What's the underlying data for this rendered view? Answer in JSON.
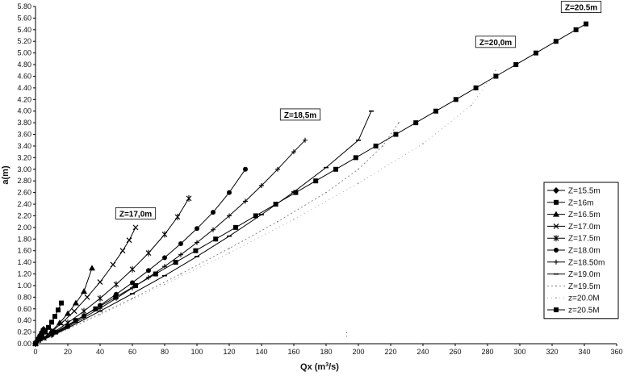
{
  "chart_data": {
    "type": "line",
    "xlabel_main": "Qx (m",
    "xlabel_sup": "3",
    "xlabel_tail": "/s)",
    "ylabel": "a(m)",
    "xlim": [
      0,
      360
    ],
    "ylim": [
      0,
      5.8
    ],
    "xticks": [
      "0",
      "20",
      "40",
      "60",
      "80",
      "100",
      "120",
      "140",
      "160",
      "180",
      "200",
      "220",
      "240",
      "260",
      "280",
      "300",
      "320",
      "340",
      "360"
    ],
    "yticks": [
      "0.00",
      "0.20",
      "0.40",
      "0.60",
      "0.80",
      "1.00",
      "1.20",
      "1.40",
      "1.60",
      "1.80",
      "2.00",
      "2.20",
      "2.40",
      "2.60",
      "2.80",
      "3.00",
      "3.20",
      "3.40",
      "3.60",
      "3.80",
      "4.00",
      "4.20",
      "4.40",
      "4.60",
      "4.80",
      "5.00",
      "5.20",
      "5.40",
      "5.60",
      "5.80"
    ],
    "grid": false,
    "legend_position": "right",
    "series": [
      {
        "name": "Z=15.5m",
        "marker": "diamond",
        "color": "#000000",
        "dash": "",
        "x": [
          0,
          1,
          2,
          3,
          4,
          5
        ],
        "y": [
          0,
          0.05,
          0.1,
          0.15,
          0.2,
          0.25
        ]
      },
      {
        "name": "Z=16m",
        "marker": "square",
        "color": "#000000",
        "dash": "",
        "x": [
          0,
          2,
          4,
          6,
          8,
          10,
          12,
          14,
          16
        ],
        "y": [
          0,
          0.06,
          0.12,
          0.2,
          0.28,
          0.37,
          0.47,
          0.58,
          0.7
        ]
      },
      {
        "name": "Z=16.5m",
        "marker": "triangle",
        "color": "#000000",
        "dash": "",
        "x": [
          0,
          5,
          10,
          15,
          20,
          25,
          30,
          35
        ],
        "y": [
          0,
          0.1,
          0.22,
          0.36,
          0.52,
          0.7,
          0.9,
          1.3
        ]
      },
      {
        "name": "Z=17.0m",
        "marker": "x",
        "color": "#000000",
        "dash": "",
        "x": [
          0,
          8,
          16,
          24,
          32,
          40,
          48,
          54,
          58,
          62
        ],
        "y": [
          0,
          0.16,
          0.35,
          0.56,
          0.8,
          1.06,
          1.36,
          1.6,
          1.78,
          2.0
        ]
      },
      {
        "name": "Z=17.5m",
        "marker": "star",
        "color": "#000000",
        "dash": "",
        "x": [
          0,
          10,
          20,
          30,
          40,
          50,
          60,
          70,
          80,
          88,
          95
        ],
        "y": [
          0,
          0.17,
          0.36,
          0.56,
          0.78,
          1.02,
          1.28,
          1.56,
          1.88,
          2.18,
          2.5
        ]
      },
      {
        "name": "Z=18.0m",
        "marker": "circle",
        "color": "#000000",
        "dash": "",
        "x": [
          0,
          10,
          20,
          30,
          40,
          50,
          60,
          70,
          80,
          90,
          100,
          110,
          120,
          130
        ],
        "y": [
          0,
          0.15,
          0.31,
          0.48,
          0.66,
          0.85,
          1.05,
          1.26,
          1.48,
          1.72,
          1.98,
          2.26,
          2.6,
          3.0
        ]
      },
      {
        "name": "Z=18.50m",
        "marker": "plus",
        "color": "#000000",
        "dash": "",
        "x": [
          0,
          10,
          20,
          30,
          40,
          50,
          60,
          70,
          80,
          90,
          100,
          110,
          120,
          130,
          140,
          150,
          160,
          167
        ],
        "y": [
          0,
          0.14,
          0.29,
          0.45,
          0.61,
          0.78,
          0.96,
          1.14,
          1.33,
          1.53,
          1.74,
          1.96,
          2.2,
          2.45,
          2.72,
          3.0,
          3.3,
          3.5
        ]
      },
      {
        "name": "Z=19.0m",
        "marker": "dash",
        "color": "#000000",
        "dash": "",
        "x": [
          0,
          20,
          40,
          60,
          80,
          100,
          120,
          140,
          160,
          180,
          200,
          208
        ],
        "y": [
          0,
          0.27,
          0.56,
          0.86,
          1.17,
          1.5,
          1.85,
          2.22,
          2.61,
          3.03,
          3.5,
          4.0
        ]
      },
      {
        "name": "Z=19.5m",
        "marker": "dot",
        "color": "#8a8a8a",
        "dash": "2,3",
        "x": [
          0,
          30,
          60,
          90,
          120,
          150,
          180,
          200,
          215,
          225
        ],
        "y": [
          0,
          0.38,
          0.78,
          1.2,
          1.64,
          2.1,
          2.6,
          3.0,
          3.4,
          3.8
        ]
      },
      {
        "name": "z=20.0M",
        "marker": "dot",
        "color": "#a8a8a8",
        "dash": "1,4",
        "x": [
          0,
          40,
          80,
          120,
          160,
          200,
          240,
          270,
          285
        ],
        "y": [
          0,
          0.5,
          1.02,
          1.56,
          2.14,
          2.76,
          3.44,
          4.1,
          4.7
        ]
      },
      {
        "name": "z=20.5M",
        "marker": "square",
        "color": "#000000",
        "dash": "",
        "x": [
          0,
          12.4,
          24.8,
          37.2,
          49.6,
          62,
          74.4,
          86.8,
          99.2,
          111.6,
          124,
          136.4,
          148.8,
          161.2,
          173.6,
          186,
          198.4,
          210.8,
          223.2,
          235.6,
          248,
          260.4,
          272.8,
          285.2,
          297.6,
          310,
          322.4,
          334.8,
          341
        ],
        "y": [
          0,
          0.2,
          0.4,
          0.6,
          0.8,
          1.0,
          1.2,
          1.4,
          1.6,
          1.8,
          2.0,
          2.2,
          2.4,
          2.6,
          2.8,
          3.0,
          3.2,
          3.4,
          3.6,
          3.8,
          4.0,
          4.2,
          4.4,
          4.6,
          4.8,
          5.0,
          5.2,
          5.4,
          5.5
        ]
      }
    ],
    "annotations": [
      {
        "text": "Z=17,0m",
        "x": 62,
        "y": 2.2
      },
      {
        "text": "Z=18,5m",
        "x": 164,
        "y": 3.9
      },
      {
        "text": "Z=20,0m",
        "x": 285,
        "y": 5.15
      },
      {
        "text": "Z=20.5m",
        "x": 338,
        "y": 5.75
      }
    ]
  }
}
